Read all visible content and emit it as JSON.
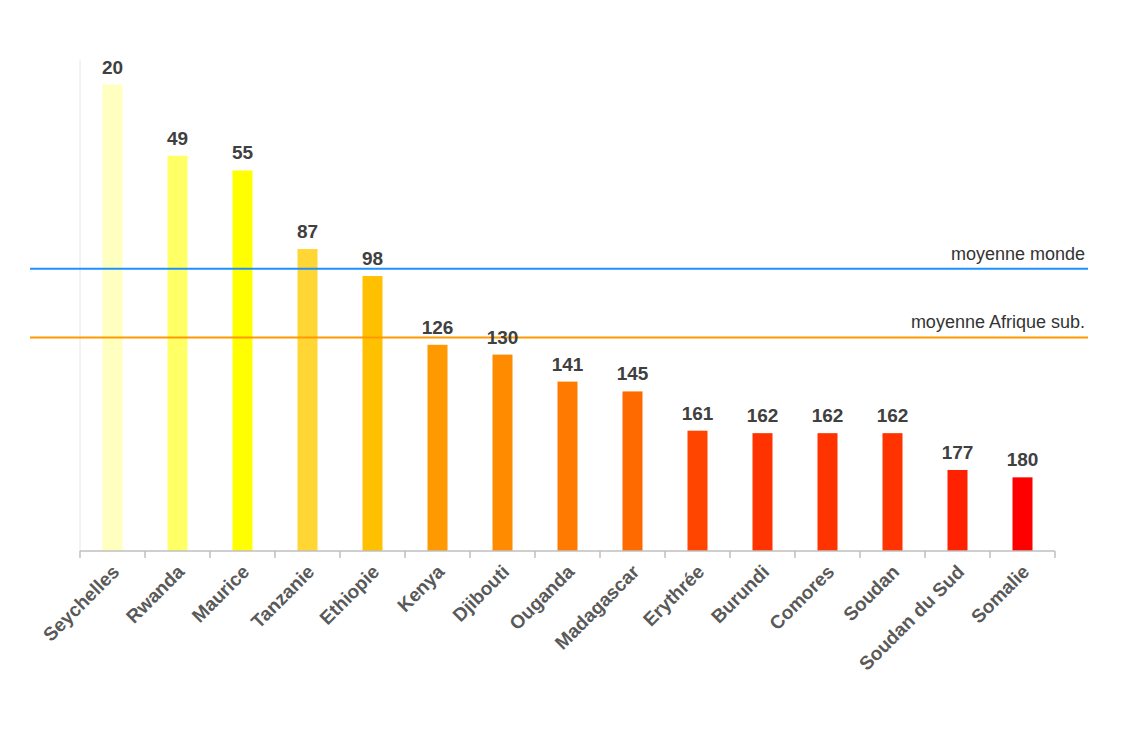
{
  "chart_data": {
    "type": "bar",
    "categories": [
      "Seychelles",
      "Rwanda",
      "Maurice",
      "Tanzanie",
      "Ethiopie",
      "Kenya",
      "Djibouti",
      "Ouganda",
      "Madagascar",
      "Erythrée",
      "Burundi",
      "Comores",
      "Soudan",
      "Soudan du Sud",
      "Somalie"
    ],
    "values": [
      20,
      49,
      55,
      87,
      98,
      126,
      130,
      141,
      145,
      161,
      162,
      162,
      162,
      177,
      180
    ],
    "colors": [
      "#ffffc0",
      "#ffff66",
      "#ffff00",
      "#ffd633",
      "#ffc000",
      "#ff9900",
      "#ff8c00",
      "#ff7a00",
      "#ff6a00",
      "#ff4500",
      "#ff3300",
      "#ff3300",
      "#ff3300",
      "#ff2200",
      "#ff0000"
    ],
    "ylim": [
      210,
      10
    ],
    "tick_labels": "x",
    "data_labels": true,
    "grid": false,
    "reference_lines": [
      {
        "label": "moyenne monde",
        "value": 95,
        "color": "#1e90ff"
      },
      {
        "label": "moyenne Afrique sub.",
        "value": 123,
        "color": "#ff9900"
      }
    ]
  }
}
